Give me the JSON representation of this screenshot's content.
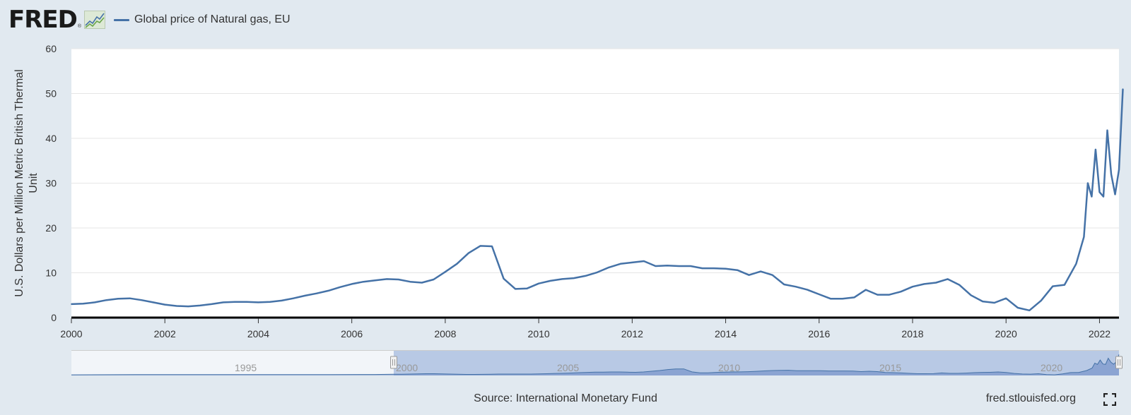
{
  "brand": {
    "logo_text": "FRED",
    "logo_mark": "®",
    "logo_icon": "line-chart-icon"
  },
  "footer": {
    "source": "Source: International Monetary Fund",
    "credit": "fred.stlouisfed.org",
    "fullscreen_icon": "fullscreen-icon"
  },
  "colors": {
    "series": "#4572a7",
    "background": "#e1e9f0",
    "plot_background": "#ffffff",
    "navigator_mask": "#b4c6e4",
    "navigator_fill": "#6685c2"
  },
  "chart_data": {
    "type": "line",
    "ylabel": "U.S. Dollars per Million Metric British Thermal Unit",
    "xlabel": "",
    "ylim": [
      0,
      60
    ],
    "yticks": [
      "0",
      "10",
      "20",
      "30",
      "40",
      "50",
      "60"
    ],
    "xlim": [
      "2000-01",
      "2022-06"
    ],
    "xticks": [
      "2000",
      "2002",
      "2004",
      "2006",
      "2008",
      "2010",
      "2012",
      "2014",
      "2016",
      "2018",
      "2020",
      "2022"
    ],
    "grid": true,
    "legend_position": "top-left",
    "series": [
      {
        "name": "Global price of Natural gas, EU",
        "color": "#4572a7",
        "points": [
          [
            "2000-01",
            3.0
          ],
          [
            "2000-04",
            3.1
          ],
          [
            "2000-07",
            3.4
          ],
          [
            "2000-10",
            3.9
          ],
          [
            "2001-01",
            4.2
          ],
          [
            "2001-04",
            4.3
          ],
          [
            "2001-07",
            3.9
          ],
          [
            "2001-10",
            3.4
          ],
          [
            "2002-01",
            2.9
          ],
          [
            "2002-04",
            2.6
          ],
          [
            "2002-07",
            2.5
          ],
          [
            "2002-10",
            2.7
          ],
          [
            "2003-01",
            3.0
          ],
          [
            "2003-04",
            3.4
          ],
          [
            "2003-07",
            3.5
          ],
          [
            "2003-10",
            3.5
          ],
          [
            "2004-01",
            3.4
          ],
          [
            "2004-04",
            3.5
          ],
          [
            "2004-07",
            3.8
          ],
          [
            "2004-10",
            4.3
          ],
          [
            "2005-01",
            4.9
          ],
          [
            "2005-04",
            5.4
          ],
          [
            "2005-07",
            6.0
          ],
          [
            "2005-10",
            6.8
          ],
          [
            "2006-01",
            7.5
          ],
          [
            "2006-04",
            8.0
          ],
          [
            "2006-07",
            8.3
          ],
          [
            "2006-10",
            8.6
          ],
          [
            "2007-01",
            8.5
          ],
          [
            "2007-04",
            8.0
          ],
          [
            "2007-07",
            7.8
          ],
          [
            "2007-10",
            8.5
          ],
          [
            "2008-01",
            10.2
          ],
          [
            "2008-04",
            12.0
          ],
          [
            "2008-07",
            14.4
          ],
          [
            "2008-10",
            16.0
          ],
          [
            "2009-01",
            15.9
          ],
          [
            "2009-04",
            8.7
          ],
          [
            "2009-07",
            6.4
          ],
          [
            "2009-10",
            6.5
          ],
          [
            "2010-01",
            7.6
          ],
          [
            "2010-04",
            8.2
          ],
          [
            "2010-07",
            8.6
          ],
          [
            "2010-10",
            8.8
          ],
          [
            "2011-01",
            9.3
          ],
          [
            "2011-04",
            10.1
          ],
          [
            "2011-07",
            11.2
          ],
          [
            "2011-10",
            12.0
          ],
          [
            "2012-01",
            12.3
          ],
          [
            "2012-04",
            12.6
          ],
          [
            "2012-07",
            11.5
          ],
          [
            "2012-10",
            11.6
          ],
          [
            "2013-01",
            11.5
          ],
          [
            "2013-04",
            11.5
          ],
          [
            "2013-07",
            11.0
          ],
          [
            "2013-10",
            11.0
          ],
          [
            "2014-01",
            10.9
          ],
          [
            "2014-04",
            10.6
          ],
          [
            "2014-07",
            9.5
          ],
          [
            "2014-10",
            10.3
          ],
          [
            "2015-01",
            9.5
          ],
          [
            "2015-04",
            7.4
          ],
          [
            "2015-07",
            6.9
          ],
          [
            "2015-10",
            6.2
          ],
          [
            "2016-01",
            5.2
          ],
          [
            "2016-04",
            4.2
          ],
          [
            "2016-07",
            4.2
          ],
          [
            "2016-10",
            4.5
          ],
          [
            "2017-01",
            6.2
          ],
          [
            "2017-04",
            5.1
          ],
          [
            "2017-07",
            5.1
          ],
          [
            "2017-10",
            5.8
          ],
          [
            "2018-01",
            6.9
          ],
          [
            "2018-04",
            7.5
          ],
          [
            "2018-07",
            7.8
          ],
          [
            "2018-10",
            8.6
          ],
          [
            "2019-01",
            7.3
          ],
          [
            "2019-04",
            5.0
          ],
          [
            "2019-07",
            3.6
          ],
          [
            "2019-10",
            3.3
          ],
          [
            "2020-01",
            4.3
          ],
          [
            "2020-04",
            2.2
          ],
          [
            "2020-07",
            1.6
          ],
          [
            "2020-10",
            3.8
          ],
          [
            "2021-01",
            7.0
          ],
          [
            "2021-04",
            7.3
          ],
          [
            "2021-07",
            12.0
          ],
          [
            "2021-09",
            18.0
          ],
          [
            "2021-10",
            30.0
          ],
          [
            "2021-11",
            27.0
          ],
          [
            "2021-12",
            37.5
          ],
          [
            "2022-01",
            28.0
          ],
          [
            "2022-02",
            27.0
          ],
          [
            "2022-03",
            41.8
          ],
          [
            "2022-04",
            32.0
          ],
          [
            "2022-05",
            27.5
          ],
          [
            "2022-06",
            33.0
          ],
          [
            "2022-07",
            51.0
          ]
        ]
      }
    ],
    "navigator": {
      "xlim": [
        "1990-01",
        "2022-07"
      ],
      "labels": [
        "1995",
        "2000",
        "2005",
        "2010",
        "2015",
        "2020"
      ],
      "selected_range": [
        "2000-01",
        "2022-07"
      ],
      "history": [
        [
          "1990-01",
          1.6
        ],
        [
          "1992-01",
          2.0
        ],
        [
          "1994-01",
          2.2
        ],
        [
          "1996-01",
          2.2
        ],
        [
          "1998-01",
          2.3
        ],
        [
          "1999-06",
          2.4
        ],
        [
          "2000-01",
          3.0
        ]
      ]
    }
  }
}
